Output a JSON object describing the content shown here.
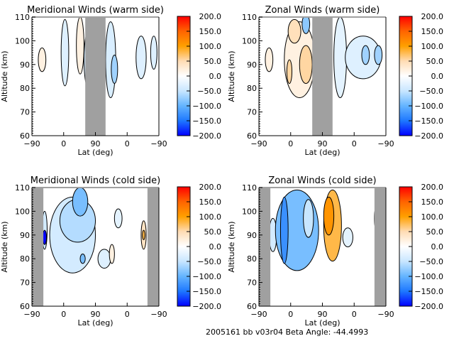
{
  "footer": "2005161 bb v03r04   Beta Angle: -44.4993",
  "colorbar": {
    "ticks": [
      "200.0",
      "150.0",
      "100.0",
      "50.0",
      "0.0",
      "−50.0",
      "−100.0",
      "−150.0",
      "−200.0"
    ],
    "range": [
      -200,
      200
    ],
    "colors": [
      "#0000ff",
      "#1e78ff",
      "#64b4ff",
      "#c8e6ff",
      "#ffffff",
      "#ffdcb4",
      "#ffa000",
      "#ff6400",
      "#ff0000"
    ]
  },
  "chart_data": [
    {
      "type": "heatmap",
      "title": "Meridional Winds (warm side)",
      "xlabel": "Lat (deg)",
      "ylabel": "Altitude (km)",
      "xticks": [
        "−90",
        "0",
        "90",
        "0",
        "−90"
      ],
      "yticks": [
        "60",
        "70",
        "80",
        "90",
        "100",
        "110"
      ],
      "ylim": [
        60,
        110
      ],
      "no_data_bands": [
        [
          0.42,
          0.58
        ]
      ],
      "blobs": [
        {
          "x": 0.08,
          "y": 92,
          "w": 0.03,
          "h": 5,
          "v": 20
        },
        {
          "x": 0.26,
          "y": 95,
          "w": 0.03,
          "h": 14,
          "v": -30
        },
        {
          "x": 0.38,
          "y": 98,
          "w": 0.03,
          "h": 12,
          "v": 20
        },
        {
          "x": 0.48,
          "y": 92,
          "w": 0.07,
          "h": 16,
          "v": -40
        },
        {
          "x": 0.52,
          "y": 90,
          "w": 0.04,
          "h": 10,
          "v": -70
        },
        {
          "x": 0.62,
          "y": 92,
          "w": 0.04,
          "h": 16,
          "v": -35
        },
        {
          "x": 0.65,
          "y": 88,
          "w": 0.025,
          "h": 6,
          "v": -70
        },
        {
          "x": 0.86,
          "y": 93,
          "w": 0.04,
          "h": 9,
          "v": -30
        },
        {
          "x": 0.96,
          "y": 95,
          "w": 0.025,
          "h": 7,
          "v": -30
        }
      ]
    },
    {
      "type": "heatmap",
      "title": "Zonal Winds (warm side)",
      "xlabel": "Lat (deg)",
      "ylabel": "Altitude (km)",
      "xticks": [
        "−90",
        "0",
        "90",
        "0",
        "−90"
      ],
      "yticks": [
        "60",
        "70",
        "80",
        "90",
        "100",
        "110"
      ],
      "ylim": [
        60,
        110
      ],
      "no_data_bands": [
        [
          0.42,
          0.58
        ]
      ],
      "blobs": [
        {
          "x": 0.08,
          "y": 92,
          "w": 0.03,
          "h": 5,
          "v": 20
        },
        {
          "x": 0.32,
          "y": 92,
          "w": 0.12,
          "h": 16,
          "v": 20
        },
        {
          "x": 0.28,
          "y": 104,
          "w": 0.05,
          "h": 5,
          "v": 45
        },
        {
          "x": 0.37,
          "y": 90,
          "w": 0.05,
          "h": 8,
          "v": 55
        },
        {
          "x": 0.24,
          "y": 87,
          "w": 0.02,
          "h": 5,
          "v": 55
        },
        {
          "x": 0.37,
          "y": 107,
          "w": 0.03,
          "h": 4,
          "v": -80
        },
        {
          "x": 0.64,
          "y": 93,
          "w": 0.05,
          "h": 17,
          "v": -25
        },
        {
          "x": 0.82,
          "y": 93,
          "w": 0.14,
          "h": 9,
          "v": -30
        },
        {
          "x": 0.84,
          "y": 94,
          "w": 0.03,
          "h": 4,
          "v": -70
        },
        {
          "x": 0.94,
          "y": 94,
          "w": 0.03,
          "h": 4,
          "v": -70
        }
      ]
    },
    {
      "type": "heatmap",
      "title": "Meridional Winds (cold side)",
      "xlabel": "Lat (deg)",
      "ylabel": "Altitude (km)",
      "xticks": [
        "−90",
        "0",
        "90",
        "0",
        "−90"
      ],
      "yticks": [
        "60",
        "70",
        "80",
        "90",
        "100",
        "110"
      ],
      "ylim": [
        60,
        110
      ],
      "no_data_bands": [
        [
          0.0,
          0.09
        ],
        [
          0.91,
          1.0
        ]
      ],
      "blobs": [
        {
          "x": 0.1,
          "y": 92,
          "w": 0.02,
          "h": 8,
          "v": -40
        },
        {
          "x": 0.1,
          "y": 89,
          "w": 0.015,
          "h": 3,
          "v": -200
        },
        {
          "x": 0.32,
          "y": 90,
          "w": 0.18,
          "h": 16,
          "v": -40
        },
        {
          "x": 0.36,
          "y": 96,
          "w": 0.14,
          "h": 9,
          "v": -60
        },
        {
          "x": 0.38,
          "y": 104,
          "w": 0.06,
          "h": 6,
          "v": -90
        },
        {
          "x": 0.4,
          "y": 80,
          "w": 0.02,
          "h": 2,
          "v": -90
        },
        {
          "x": 0.57,
          "y": 80,
          "w": 0.05,
          "h": 4,
          "v": -30
        },
        {
          "x": 0.63,
          "y": 82,
          "w": 0.02,
          "h": 4,
          "v": 20
        },
        {
          "x": 0.68,
          "y": 97,
          "w": 0.03,
          "h": 4,
          "v": -25
        },
        {
          "x": 0.88,
          "y": 90,
          "w": 0.02,
          "h": 6,
          "v": 40
        },
        {
          "x": 0.88,
          "y": 90,
          "w": 0.01,
          "h": 2,
          "v": 80
        }
      ]
    },
    {
      "type": "heatmap",
      "title": "Zonal Winds (cold side)",
      "xlabel": "Lat (deg)",
      "ylabel": "Altitude (km)",
      "xticks": [
        "−90",
        "0",
        "90",
        "0",
        "−90"
      ],
      "yticks": [
        "60",
        "70",
        "80",
        "90",
        "100",
        "110"
      ],
      "ylim": [
        60,
        110
      ],
      "no_data_bands": [
        [
          0.0,
          0.09
        ],
        [
          0.91,
          1.0
        ]
      ],
      "blobs": [
        {
          "x": 0.11,
          "y": 90,
          "w": 0.03,
          "h": 7,
          "v": -40
        },
        {
          "x": 0.3,
          "y": 92,
          "w": 0.17,
          "h": 17,
          "v": -90
        },
        {
          "x": 0.2,
          "y": 92,
          "w": 0.03,
          "h": 14,
          "v": -130
        },
        {
          "x": 0.39,
          "y": 97,
          "w": 0.04,
          "h": 8,
          "v": -50
        },
        {
          "x": 0.58,
          "y": 94,
          "w": 0.07,
          "h": 15,
          "v": 80
        },
        {
          "x": 0.55,
          "y": 98,
          "w": 0.04,
          "h": 8,
          "v": 110
        },
        {
          "x": 0.7,
          "y": 89,
          "w": 0.04,
          "h": 4,
          "v": -25
        },
        {
          "x": 0.92,
          "y": 97,
          "w": 0.01,
          "h": 4,
          "v": -30
        }
      ]
    }
  ]
}
